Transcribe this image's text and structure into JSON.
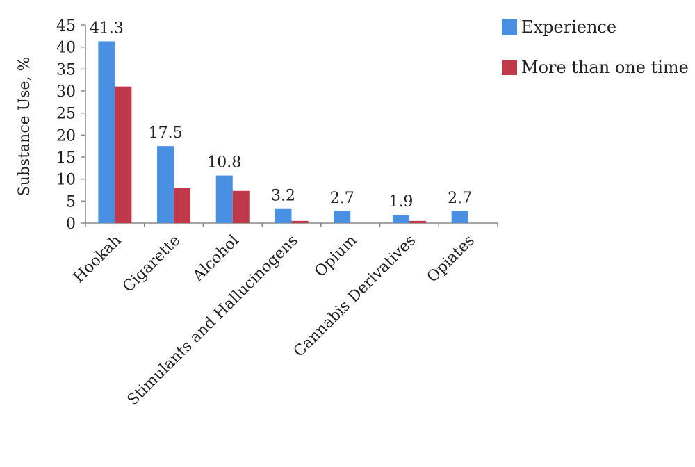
{
  "chart_data": {
    "type": "bar",
    "ylabel": "Substance Use, %",
    "xlabel": "",
    "ylim": [
      0,
      45
    ],
    "yticks": [
      0,
      5,
      10,
      15,
      20,
      25,
      30,
      35,
      40,
      45
    ],
    "categories": [
      "Hookah",
      "Cigarette",
      "Alcohol",
      "Stimulants and Hallucinogens",
      "Opium",
      "Cannabis Derivatives",
      "Opiates"
    ],
    "series": [
      {
        "name": "Experience",
        "color": "#4a90e2",
        "values": [
          41.3,
          17.5,
          10.8,
          3.2,
          2.7,
          1.9,
          2.7
        ],
        "labels": [
          "41.3",
          "17.5",
          "10.8",
          "3.2",
          "2.7",
          "1.9",
          "2.7"
        ]
      },
      {
        "name": "More than one time",
        "color": "#c0394b",
        "values": [
          31.0,
          8.0,
          7.3,
          0.5,
          0,
          0.5,
          0
        ]
      }
    ],
    "legend_position": "top-right",
    "grid": false
  }
}
